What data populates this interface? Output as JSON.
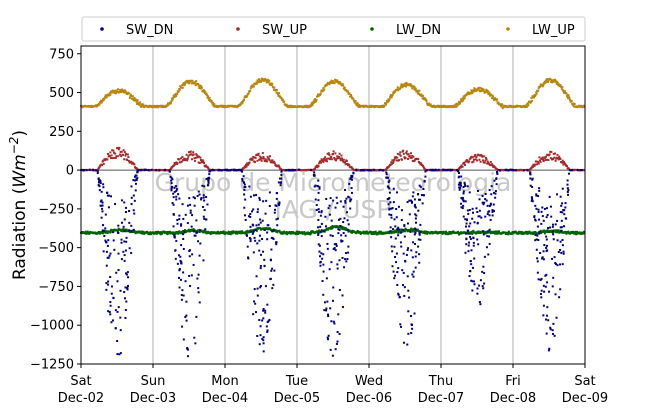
{
  "chart_data": {
    "type": "scatter",
    "title": "",
    "ylabel_main": "Radiation (",
    "ylabel_math": "Wm",
    "ylabel_exp": "−2",
    "ylabel_close": ")",
    "ylim": [
      -1250,
      800
    ],
    "yticks": [
      -1250,
      -1000,
      -750,
      -500,
      -250,
      0,
      250,
      500,
      750
    ],
    "ytick_labels": [
      "−1250",
      "−1000",
      "−750",
      "−500",
      "−250",
      "0",
      "250",
      "500",
      "750"
    ],
    "xlim": [
      "2017-12-02",
      "2017-12-09"
    ],
    "xticks": [
      "2017-12-02",
      "2017-12-03",
      "2017-12-04",
      "2017-12-05",
      "2017-12-06",
      "2017-12-07",
      "2017-12-08",
      "2017-12-09"
    ],
    "xtick_day": [
      "Sat",
      "Sun",
      "Mon",
      "Tue",
      "Wed",
      "Thu",
      "Fri",
      "Sat"
    ],
    "xtick_date": [
      "Dec-02",
      "Dec-03",
      "Dec-04",
      "Dec-05",
      "Dec-06",
      "Dec-07",
      "Dec-08",
      "Dec-09"
    ],
    "grid": "vertical",
    "legend_placement": "top (above plot)",
    "watermark_line1": "Grupo de Micrometeorologia",
    "watermark_line2": "IAG / USP",
    "series": [
      {
        "name": "SW_DN",
        "color": "#000080",
        "note_shape": "daytime pulses reaching about −1000 to −1200",
        "daily_min": [
          -1200,
          -1180,
          -1150,
          -1170,
          -1160,
          -880,
          -1120
        ]
      },
      {
        "name": "SW_UP",
        "color": "#a52a2a",
        "daily_max": [
          170,
          140,
          130,
          140,
          150,
          120,
          140
        ]
      },
      {
        "name": "LW_DN",
        "color": "#006400",
        "baseline": -405,
        "daily_peak": [
          -385,
          -390,
          -375,
          -365,
          -385,
          -400,
          -395
        ]
      },
      {
        "name": "LW_UP",
        "color": "#b8860b",
        "baseline": 410,
        "daily_max": [
          510,
          570,
          580,
          570,
          550,
          520,
          580
        ]
      }
    ]
  }
}
